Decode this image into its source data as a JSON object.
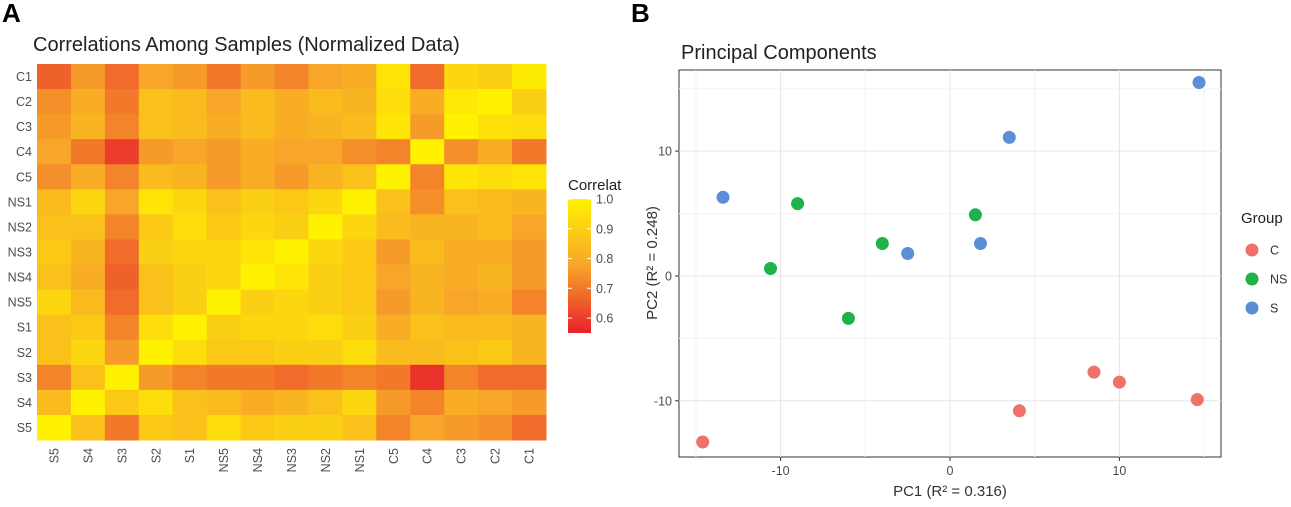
{
  "panels": {
    "a": "A",
    "b": "B"
  },
  "chart_data": [
    {
      "type": "heatmap",
      "title": "Correlations Among Samples (Normalized Data)",
      "rows": [
        "C1",
        "C2",
        "C3",
        "C4",
        "C5",
        "NS1",
        "NS2",
        "NS3",
        "NS4",
        "NS5",
        "S1",
        "S2",
        "S3",
        "S4",
        "S5"
      ],
      "columns": [
        "S5",
        "S4",
        "S3",
        "S2",
        "S1",
        "NS5",
        "NS4",
        "NS3",
        "NS2",
        "NS1",
        "C5",
        "C4",
        "C3",
        "C2",
        "C1"
      ],
      "values": [
        [
          0.66,
          0.76,
          0.68,
          0.78,
          0.76,
          0.7,
          0.76,
          0.72,
          0.78,
          0.8,
          0.96,
          0.68,
          0.92,
          0.9,
          0.98
        ],
        [
          0.74,
          0.8,
          0.7,
          0.86,
          0.84,
          0.78,
          0.84,
          0.8,
          0.84,
          0.82,
          0.94,
          0.8,
          0.97,
          1.0,
          0.9
        ],
        [
          0.76,
          0.82,
          0.72,
          0.86,
          0.84,
          0.8,
          0.84,
          0.8,
          0.82,
          0.84,
          0.96,
          0.76,
          1.0,
          0.95,
          0.94
        ],
        [
          0.78,
          0.7,
          0.6,
          0.76,
          0.78,
          0.76,
          0.8,
          0.78,
          0.78,
          0.74,
          0.72,
          1.0,
          0.74,
          0.8,
          0.7
        ],
        [
          0.74,
          0.8,
          0.72,
          0.84,
          0.82,
          0.76,
          0.8,
          0.76,
          0.82,
          0.86,
          1.0,
          0.72,
          0.96,
          0.94,
          0.96
        ],
        [
          0.84,
          0.92,
          0.78,
          0.96,
          0.92,
          0.86,
          0.9,
          0.88,
          0.92,
          1.0,
          0.86,
          0.74,
          0.86,
          0.84,
          0.82
        ],
        [
          0.86,
          0.86,
          0.72,
          0.88,
          0.94,
          0.88,
          0.92,
          0.9,
          1.0,
          0.92,
          0.84,
          0.82,
          0.82,
          0.84,
          0.78
        ],
        [
          0.88,
          0.82,
          0.68,
          0.9,
          0.92,
          0.92,
          0.96,
          1.0,
          0.92,
          0.88,
          0.76,
          0.84,
          0.8,
          0.8,
          0.76
        ],
        [
          0.86,
          0.8,
          0.66,
          0.86,
          0.9,
          0.92,
          1.0,
          0.96,
          0.9,
          0.88,
          0.78,
          0.82,
          0.8,
          0.82,
          0.76
        ],
        [
          0.92,
          0.84,
          0.68,
          0.86,
          0.9,
          1.0,
          0.9,
          0.92,
          0.9,
          0.88,
          0.76,
          0.82,
          0.78,
          0.8,
          0.72
        ],
        [
          0.86,
          0.88,
          0.72,
          0.94,
          1.0,
          0.9,
          0.92,
          0.92,
          0.94,
          0.9,
          0.8,
          0.86,
          0.84,
          0.84,
          0.82
        ],
        [
          0.86,
          0.92,
          0.76,
          1.0,
          0.94,
          0.88,
          0.88,
          0.9,
          0.9,
          0.94,
          0.84,
          0.84,
          0.86,
          0.88,
          0.82
        ],
        [
          0.72,
          0.86,
          1.0,
          0.76,
          0.72,
          0.7,
          0.7,
          0.68,
          0.7,
          0.72,
          0.7,
          0.58,
          0.72,
          0.68,
          0.68
        ],
        [
          0.84,
          1.0,
          0.88,
          0.94,
          0.86,
          0.84,
          0.8,
          0.82,
          0.86,
          0.92,
          0.76,
          0.72,
          0.8,
          0.78,
          0.76
        ],
        [
          1.0,
          0.86,
          0.7,
          0.88,
          0.86,
          0.94,
          0.88,
          0.9,
          0.9,
          0.86,
          0.72,
          0.78,
          0.76,
          0.74,
          0.68
        ]
      ],
      "colorbar": {
        "title": "Correlat",
        "min": 0.55,
        "max": 1.0,
        "ticks": [
          "1.0",
          "0.9",
          "0.8",
          "0.7",
          "0.6"
        ]
      },
      "colors": {
        "low": "#e8202a",
        "mid": "#f7a42a",
        "high": "#fff200"
      }
    },
    {
      "type": "scatter",
      "title": "Principal Components",
      "xlabel": "PC1 (R² = 0.316)",
      "ylabel": "PC2 (R² = 0.248)",
      "xlim": [
        -16,
        16
      ],
      "ylim": [
        -14.5,
        16.5
      ],
      "xticks": [
        -10,
        0,
        10
      ],
      "yticks": [
        -10,
        0,
        10
      ],
      "xtick_labels": [
        "-10",
        "0",
        "10"
      ],
      "ytick_labels": [
        "-10",
        "0",
        "10"
      ],
      "legend_title": "Group",
      "series": [
        {
          "name": "C",
          "color": "#f0706a",
          "points": [
            [
              -14.6,
              -13.3
            ],
            [
              4.1,
              -10.8
            ],
            [
              8.5,
              -7.7
            ],
            [
              10.0,
              -8.5
            ],
            [
              14.6,
              -9.9
            ]
          ]
        },
        {
          "name": "NS",
          "color": "#1fb14a",
          "points": [
            [
              -10.6,
              0.6
            ],
            [
              -9.0,
              5.8
            ],
            [
              -6.0,
              -3.4
            ],
            [
              -4.0,
              2.6
            ],
            [
              1.5,
              4.9
            ]
          ]
        },
        {
          "name": "S",
          "color": "#5b8ed6",
          "points": [
            [
              -13.4,
              6.3
            ],
            [
              -2.5,
              1.8
            ],
            [
              1.8,
              2.6
            ],
            [
              3.5,
              11.1
            ],
            [
              14.7,
              15.5
            ]
          ]
        }
      ]
    }
  ]
}
